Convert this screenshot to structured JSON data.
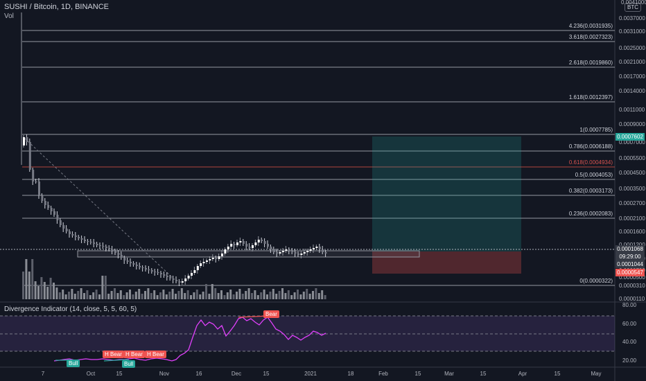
{
  "header": {
    "title": "SUSHI / Bitcoin, 1D, BINANCE",
    "volume_label": "Vol",
    "currency_button": "BTC",
    "colors": {
      "up": "#26a69a",
      "down": "#ef5350",
      "text": "#d1d4dc"
    }
  },
  "fib_levels": [
    {
      "ratio": 4.236,
      "price": 0.0031935,
      "label": "4.236(0.0031935)"
    },
    {
      "ratio": 3.618,
      "price": 0.0027323,
      "label": "3.618(0.0027323)"
    },
    {
      "ratio": 2.618,
      "price": 0.001986,
      "label": "2.618(0.0019860)"
    },
    {
      "ratio": 1.618,
      "price": 0.0012397,
      "label": "1.618(0.0012397)"
    },
    {
      "ratio": 1,
      "price": 0.0007785,
      "label": "1(0.0007785)"
    },
    {
      "ratio": 0.786,
      "price": 0.0006188,
      "label": "0.786(0.0006188)"
    },
    {
      "ratio": 0.618,
      "price": 0.0004934,
      "label": "0.618(0.0004934)",
      "highlight": true
    },
    {
      "ratio": 0.5,
      "price": 0.0004053,
      "label": "0.5(0.0004053)"
    },
    {
      "ratio": 0.382,
      "price": 0.0003173,
      "label": "0.382(0.0003173)"
    },
    {
      "ratio": 0.236,
      "price": 0.0002083,
      "label": "0.236(0.0002083)"
    },
    {
      "ratio": 0,
      "price": 3.22e-05,
      "label": "0(0.0000322)"
    }
  ],
  "price_axis": {
    "ticks": [
      "0.0037000",
      "0.0031000",
      "0.0025000",
      "0.0021000",
      "0.0017000",
      "0.0014000",
      "0.0011000",
      "0.0009000",
      "0.0007000",
      "0.0005500",
      "0.0004500",
      "0.0003500",
      "0.0002700",
      "0.0002100",
      "0.0001600",
      "0.0001200",
      "0.0000900",
      "0.0000700",
      "0.0000500",
      "0.0000310",
      "0.0000110"
    ],
    "top_partial": "0.0041000",
    "badges": [
      {
        "label": "0.0007602",
        "color": "#26a69a"
      },
      {
        "label": "0.0001068",
        "color": "#363a45"
      },
      {
        "label": "09:29:00",
        "color": "#363a45"
      },
      {
        "label": "0.0001044",
        "color": "#363a45"
      },
      {
        "label": "0.0000547",
        "color": "#ef5350"
      }
    ]
  },
  "indicator": {
    "title": "Divergence Indicator (14, close, 5, 5, 60, 5)",
    "ticks": [
      "80.00",
      "60.00",
      "40.00",
      "20.00"
    ],
    "labels": [
      {
        "text": "Bear",
        "kind": "bear"
      },
      {
        "text": "Bull",
        "kind": "bull"
      },
      {
        "text": "H Bear",
        "kind": "bear"
      },
      {
        "text": "H Bear",
        "kind": "bear"
      },
      {
        "text": "H Bear",
        "kind": "bear"
      },
      {
        "text": "Bull",
        "kind": "bull"
      }
    ]
  },
  "time_axis": {
    "labels": [
      "7",
      "Oct",
      "15",
      "Nov",
      "16",
      "Dec",
      "15",
      "2021",
      "18",
      "Feb",
      "15",
      "Mar",
      "15",
      "Apr",
      "15",
      "May"
    ]
  }
}
